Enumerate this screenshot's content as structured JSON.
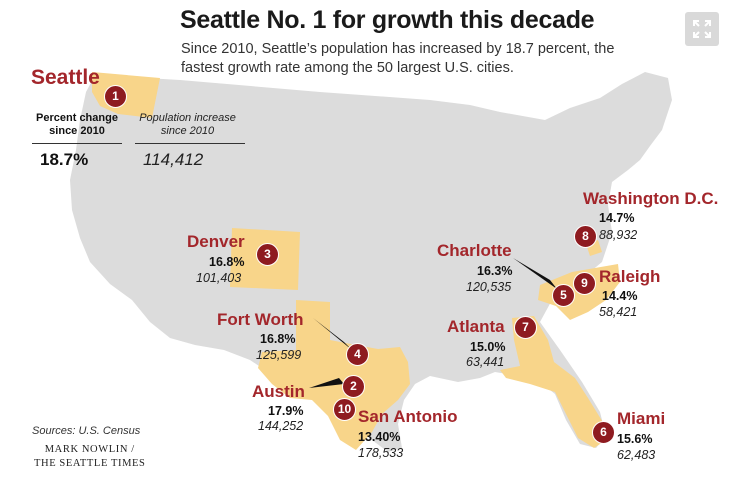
{
  "title": "Seattle No. 1 for growth this decade",
  "subtitle": "Since 2010, Seattle’s population has increased by 18.7 percent, the fastest growth rate among the 50 largest U.S. cities.",
  "seattle": {
    "name": "Seattle",
    "rank": "1",
    "pct_header": "Percent change since 2010",
    "pop_header": "Population increase since 2010",
    "pct": "18.7%",
    "pop": "114,412"
  },
  "cities": [
    {
      "rank": "2",
      "name": "Austin",
      "pct": "17.9%",
      "pop": "144,252"
    },
    {
      "rank": "3",
      "name": "Denver",
      "pct": "16.8%",
      "pop": "101,403"
    },
    {
      "rank": "4",
      "name": "Fort Worth",
      "pct": "16.8%",
      "pop": "125,599"
    },
    {
      "rank": "5",
      "name": "Charlotte",
      "pct": "16.3%",
      "pop": "120,535"
    },
    {
      "rank": "6",
      "name": "Miami",
      "pct": "15.6%",
      "pop": "62,483"
    },
    {
      "rank": "7",
      "name": "Atlanta",
      "pct": "15.0%",
      "pop": "63,441"
    },
    {
      "rank": "8",
      "name": "Washington D.C.",
      "pct": "14.7%",
      "pop": "88,932"
    },
    {
      "rank": "9",
      "name": "Raleigh",
      "pct": "14.4%",
      "pop": "58,421"
    },
    {
      "rank": "10",
      "name": "San Antonio",
      "pct": "13.40%",
      "pop": "178,533"
    }
  ],
  "sources": "Sources: U.S. Census",
  "credit_line1": "MARK NOWLIN /",
  "credit_line2": "THE SEATTLE TIMES",
  "colors": {
    "land": "#dcdcdc",
    "highlight": "#f8d58a",
    "badge": "#8e1b20",
    "city_name": "#a3262b"
  },
  "icons": {
    "expand": "expand-icon"
  }
}
